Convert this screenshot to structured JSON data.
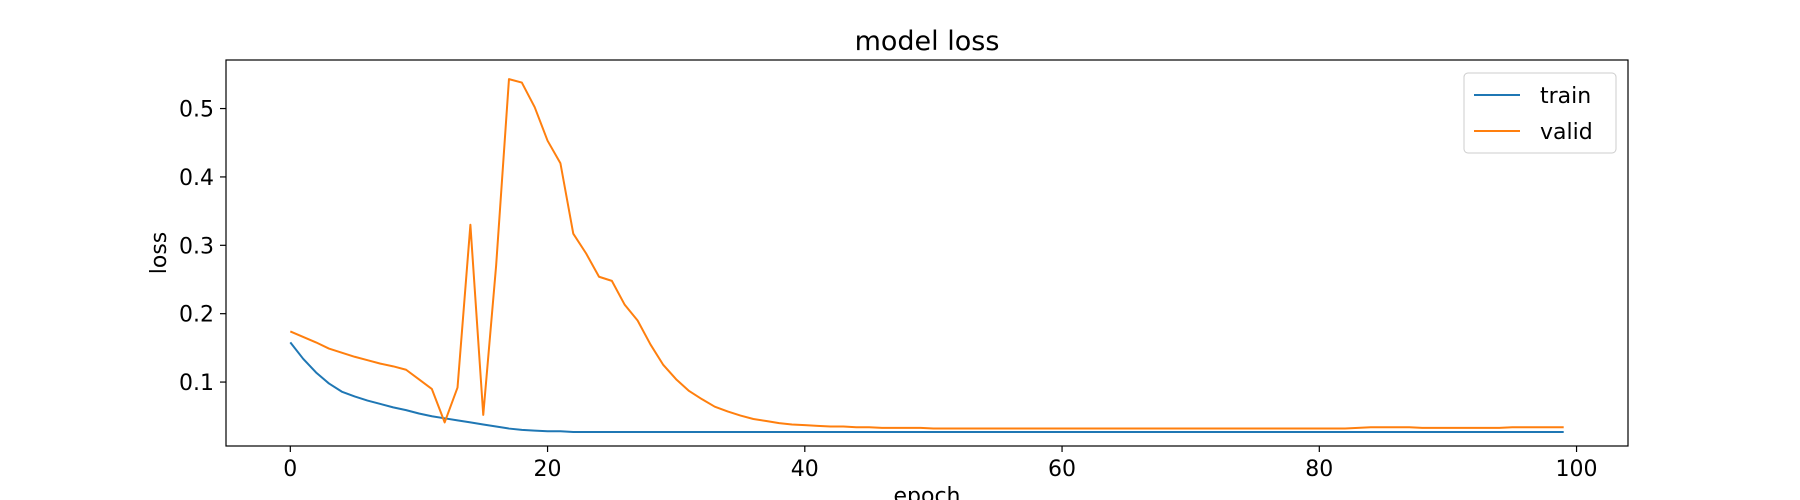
{
  "chart_data": {
    "type": "line",
    "title": "model loss",
    "xlabel": "epoch",
    "ylabel": "loss",
    "xlim": [
      -5,
      104
    ],
    "ylim": [
      0.0065,
      0.571
    ],
    "xticks": [
      0,
      20,
      40,
      60,
      80,
      100
    ],
    "yticks": [
      0.1,
      0.2,
      0.3,
      0.4,
      0.5
    ],
    "grid": false,
    "legend_position": "upper right",
    "series": [
      {
        "name": "train",
        "color": "#1f77b4",
        "x": [
          0,
          1,
          2,
          3,
          4,
          5,
          6,
          7,
          8,
          9,
          10,
          11,
          12,
          13,
          14,
          15,
          16,
          17,
          18,
          19,
          20,
          21,
          22,
          23,
          24,
          25,
          26,
          27,
          28,
          29,
          30,
          31,
          32,
          33,
          34,
          35,
          36,
          37,
          38,
          39,
          40,
          41,
          42,
          43,
          44,
          45,
          46,
          47,
          48,
          49,
          50,
          51,
          52,
          53,
          54,
          55,
          56,
          57,
          58,
          59,
          60,
          61,
          62,
          63,
          64,
          65,
          66,
          67,
          68,
          69,
          70,
          71,
          72,
          73,
          74,
          75,
          76,
          77,
          78,
          79,
          80,
          81,
          82,
          83,
          84,
          85,
          86,
          87,
          88,
          89,
          90,
          91,
          92,
          93,
          94,
          95,
          96,
          97,
          98,
          99
        ],
        "y": [
          0.158,
          0.134,
          0.114,
          0.098,
          0.086,
          0.079,
          0.073,
          0.068,
          0.063,
          0.059,
          0.054,
          0.05,
          0.047,
          0.044,
          0.041,
          0.038,
          0.035,
          0.032,
          0.03,
          0.029,
          0.028,
          0.028,
          0.027,
          0.027,
          0.027,
          0.027,
          0.027,
          0.027,
          0.027,
          0.027,
          0.027,
          0.027,
          0.027,
          0.027,
          0.027,
          0.027,
          0.027,
          0.027,
          0.027,
          0.027,
          0.027,
          0.027,
          0.027,
          0.027,
          0.027,
          0.027,
          0.027,
          0.027,
          0.027,
          0.027,
          0.027,
          0.027,
          0.027,
          0.027,
          0.027,
          0.027,
          0.027,
          0.027,
          0.027,
          0.027,
          0.027,
          0.027,
          0.027,
          0.027,
          0.027,
          0.027,
          0.027,
          0.027,
          0.027,
          0.027,
          0.027,
          0.027,
          0.027,
          0.027,
          0.027,
          0.027,
          0.027,
          0.027,
          0.027,
          0.027,
          0.027,
          0.027,
          0.027,
          0.027,
          0.027,
          0.027,
          0.027,
          0.027,
          0.027,
          0.027,
          0.027,
          0.027,
          0.027,
          0.027,
          0.027,
          0.027,
          0.027,
          0.027,
          0.027,
          0.027
        ]
      },
      {
        "name": "valid",
        "color": "#ff7f0e",
        "x": [
          0,
          1,
          2,
          3,
          4,
          5,
          6,
          7,
          8,
          9,
          10,
          11,
          12,
          13,
          14,
          15,
          16,
          17,
          18,
          19,
          20,
          21,
          22,
          23,
          24,
          25,
          26,
          27,
          28,
          29,
          30,
          31,
          32,
          33,
          34,
          35,
          36,
          37,
          38,
          39,
          40,
          41,
          42,
          43,
          44,
          45,
          46,
          47,
          48,
          49,
          50,
          51,
          52,
          53,
          54,
          55,
          56,
          57,
          58,
          59,
          60,
          61,
          62,
          63,
          64,
          65,
          66,
          67,
          68,
          69,
          70,
          71,
          72,
          73,
          74,
          75,
          76,
          77,
          78,
          79,
          80,
          81,
          82,
          83,
          84,
          85,
          86,
          87,
          88,
          89,
          90,
          91,
          92,
          93,
          94,
          95,
          96,
          97,
          98,
          99
        ],
        "y": [
          0.174,
          0.166,
          0.158,
          0.149,
          0.143,
          0.137,
          0.132,
          0.127,
          0.123,
          0.118,
          0.104,
          0.09,
          0.041,
          0.092,
          0.33,
          0.052,
          0.27,
          0.543,
          0.538,
          0.502,
          0.453,
          0.42,
          0.317,
          0.288,
          0.254,
          0.248,
          0.213,
          0.19,
          0.155,
          0.125,
          0.104,
          0.087,
          0.075,
          0.064,
          0.057,
          0.051,
          0.046,
          0.043,
          0.04,
          0.038,
          0.037,
          0.036,
          0.035,
          0.035,
          0.034,
          0.034,
          0.033,
          0.033,
          0.033,
          0.033,
          0.032,
          0.032,
          0.032,
          0.032,
          0.032,
          0.032,
          0.032,
          0.032,
          0.032,
          0.032,
          0.032,
          0.032,
          0.032,
          0.032,
          0.032,
          0.032,
          0.032,
          0.032,
          0.032,
          0.032,
          0.032,
          0.032,
          0.032,
          0.032,
          0.032,
          0.032,
          0.032,
          0.032,
          0.032,
          0.032,
          0.032,
          0.032,
          0.032,
          0.033,
          0.034,
          0.034,
          0.034,
          0.034,
          0.033,
          0.033,
          0.033,
          0.033,
          0.033,
          0.033,
          0.033,
          0.034,
          0.034,
          0.034,
          0.034,
          0.034
        ]
      }
    ]
  }
}
